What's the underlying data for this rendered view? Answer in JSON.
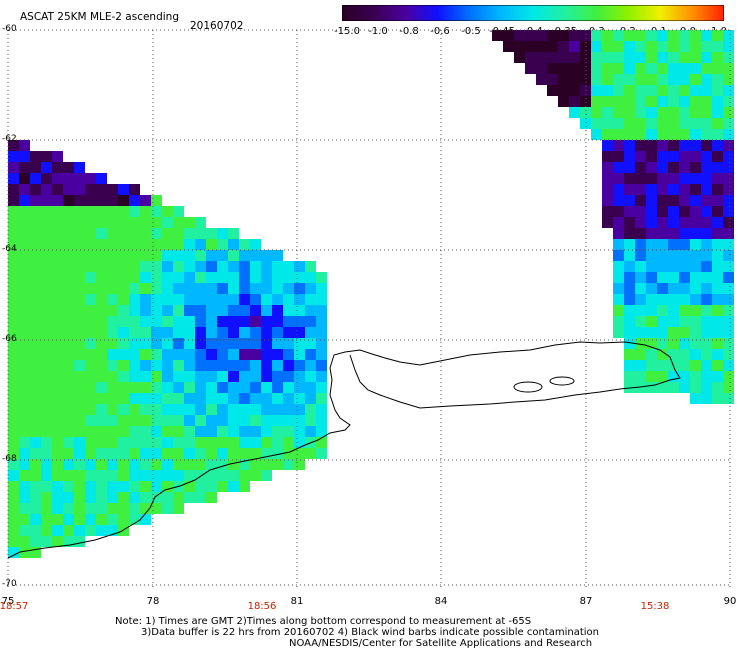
{
  "title": "ASCAT 25KM MLE-2 ascending",
  "date": "20160702",
  "colorbar": {
    "ticks": [
      "-15.0",
      "-1.0",
      "-0.8",
      "-0.6",
      "-0.5",
      "-0.45",
      "-0.4",
      "-0.35",
      "-0.3",
      "-0.2",
      "-0.1",
      "0.0",
      "1.0"
    ],
    "colors": [
      "#2a0024",
      "#3a0050",
      "#4a00a0",
      "#1010ff",
      "#0070ff",
      "#00b8ff",
      "#00e8e8",
      "#20f0a0",
      "#40f040",
      "#90f000",
      "#f0f000",
      "#ff9000",
      "#ff2000"
    ]
  },
  "latitudes": [
    "-60",
    "-62",
    "-64",
    "-66",
    "-68",
    "-70"
  ],
  "longitudes": [
    "75",
    "78",
    "81",
    "84",
    "87",
    "90"
  ],
  "time_labels": [
    "18:57",
    "18:56",
    "15:38"
  ],
  "notes": {
    "line1": "Note: 1) Times are GMT 2)Times along bottom correspond to measurement at -65S",
    "line2": "3)Data buffer is 22 hrs from 20160702 4) Black wind barbs indicate possible contamination",
    "line3": "NOAA/NESDIS/Center for Satellite Applications and Research"
  }
}
